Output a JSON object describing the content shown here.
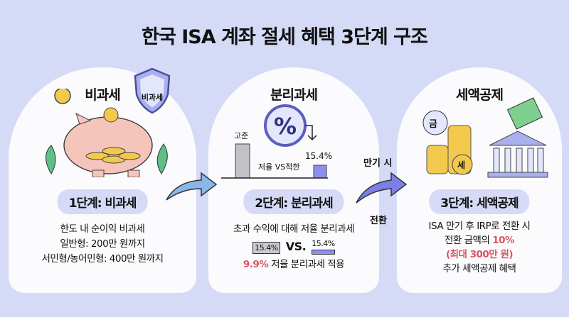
{
  "title": "한국 ISA 계좌 절세 혜택 3단계 구조",
  "stage1": {
    "heading": "비과세",
    "shield_label": "비과세",
    "pill": "1단계: 비과세",
    "lines": [
      "한도 내 순이익 비과세",
      "일반형: 200만 원까지",
      "서민형/농어민형: 400만 원까지"
    ]
  },
  "stage2": {
    "heading": "분리과세",
    "bar_label_high": "고준",
    "bar_label_low": "15.4%",
    "compare_label": "저율 VS적한",
    "pill": "2단계: 분리과세",
    "line1": "초과 수익에 대해 저율 분리과세",
    "box_left": "15.4%",
    "vs": "VS.",
    "box_right": "15.4%",
    "rate": "9.9%",
    "line3": "저율 분리과세 적용"
  },
  "stage3": {
    "heading": "세액공제",
    "coin_label": "금",
    "coin_label2": "세",
    "pill": "3단계: 세액공제",
    "line1": "ISA 만기 후 IRP로 전환 시",
    "line2a": "전환 금액의",
    "line2b": "10%",
    "line3": "(최대 300만 원)",
    "line4": "추가 세액공제 혜택"
  },
  "arrow_label_top": "만기 시",
  "arrow_label_bottom": "전환",
  "colors": {
    "background": "#d5daf7",
    "pill": "#d6daf6",
    "accent_red": "#d95560",
    "accent_purple": "#8d8ff0"
  }
}
